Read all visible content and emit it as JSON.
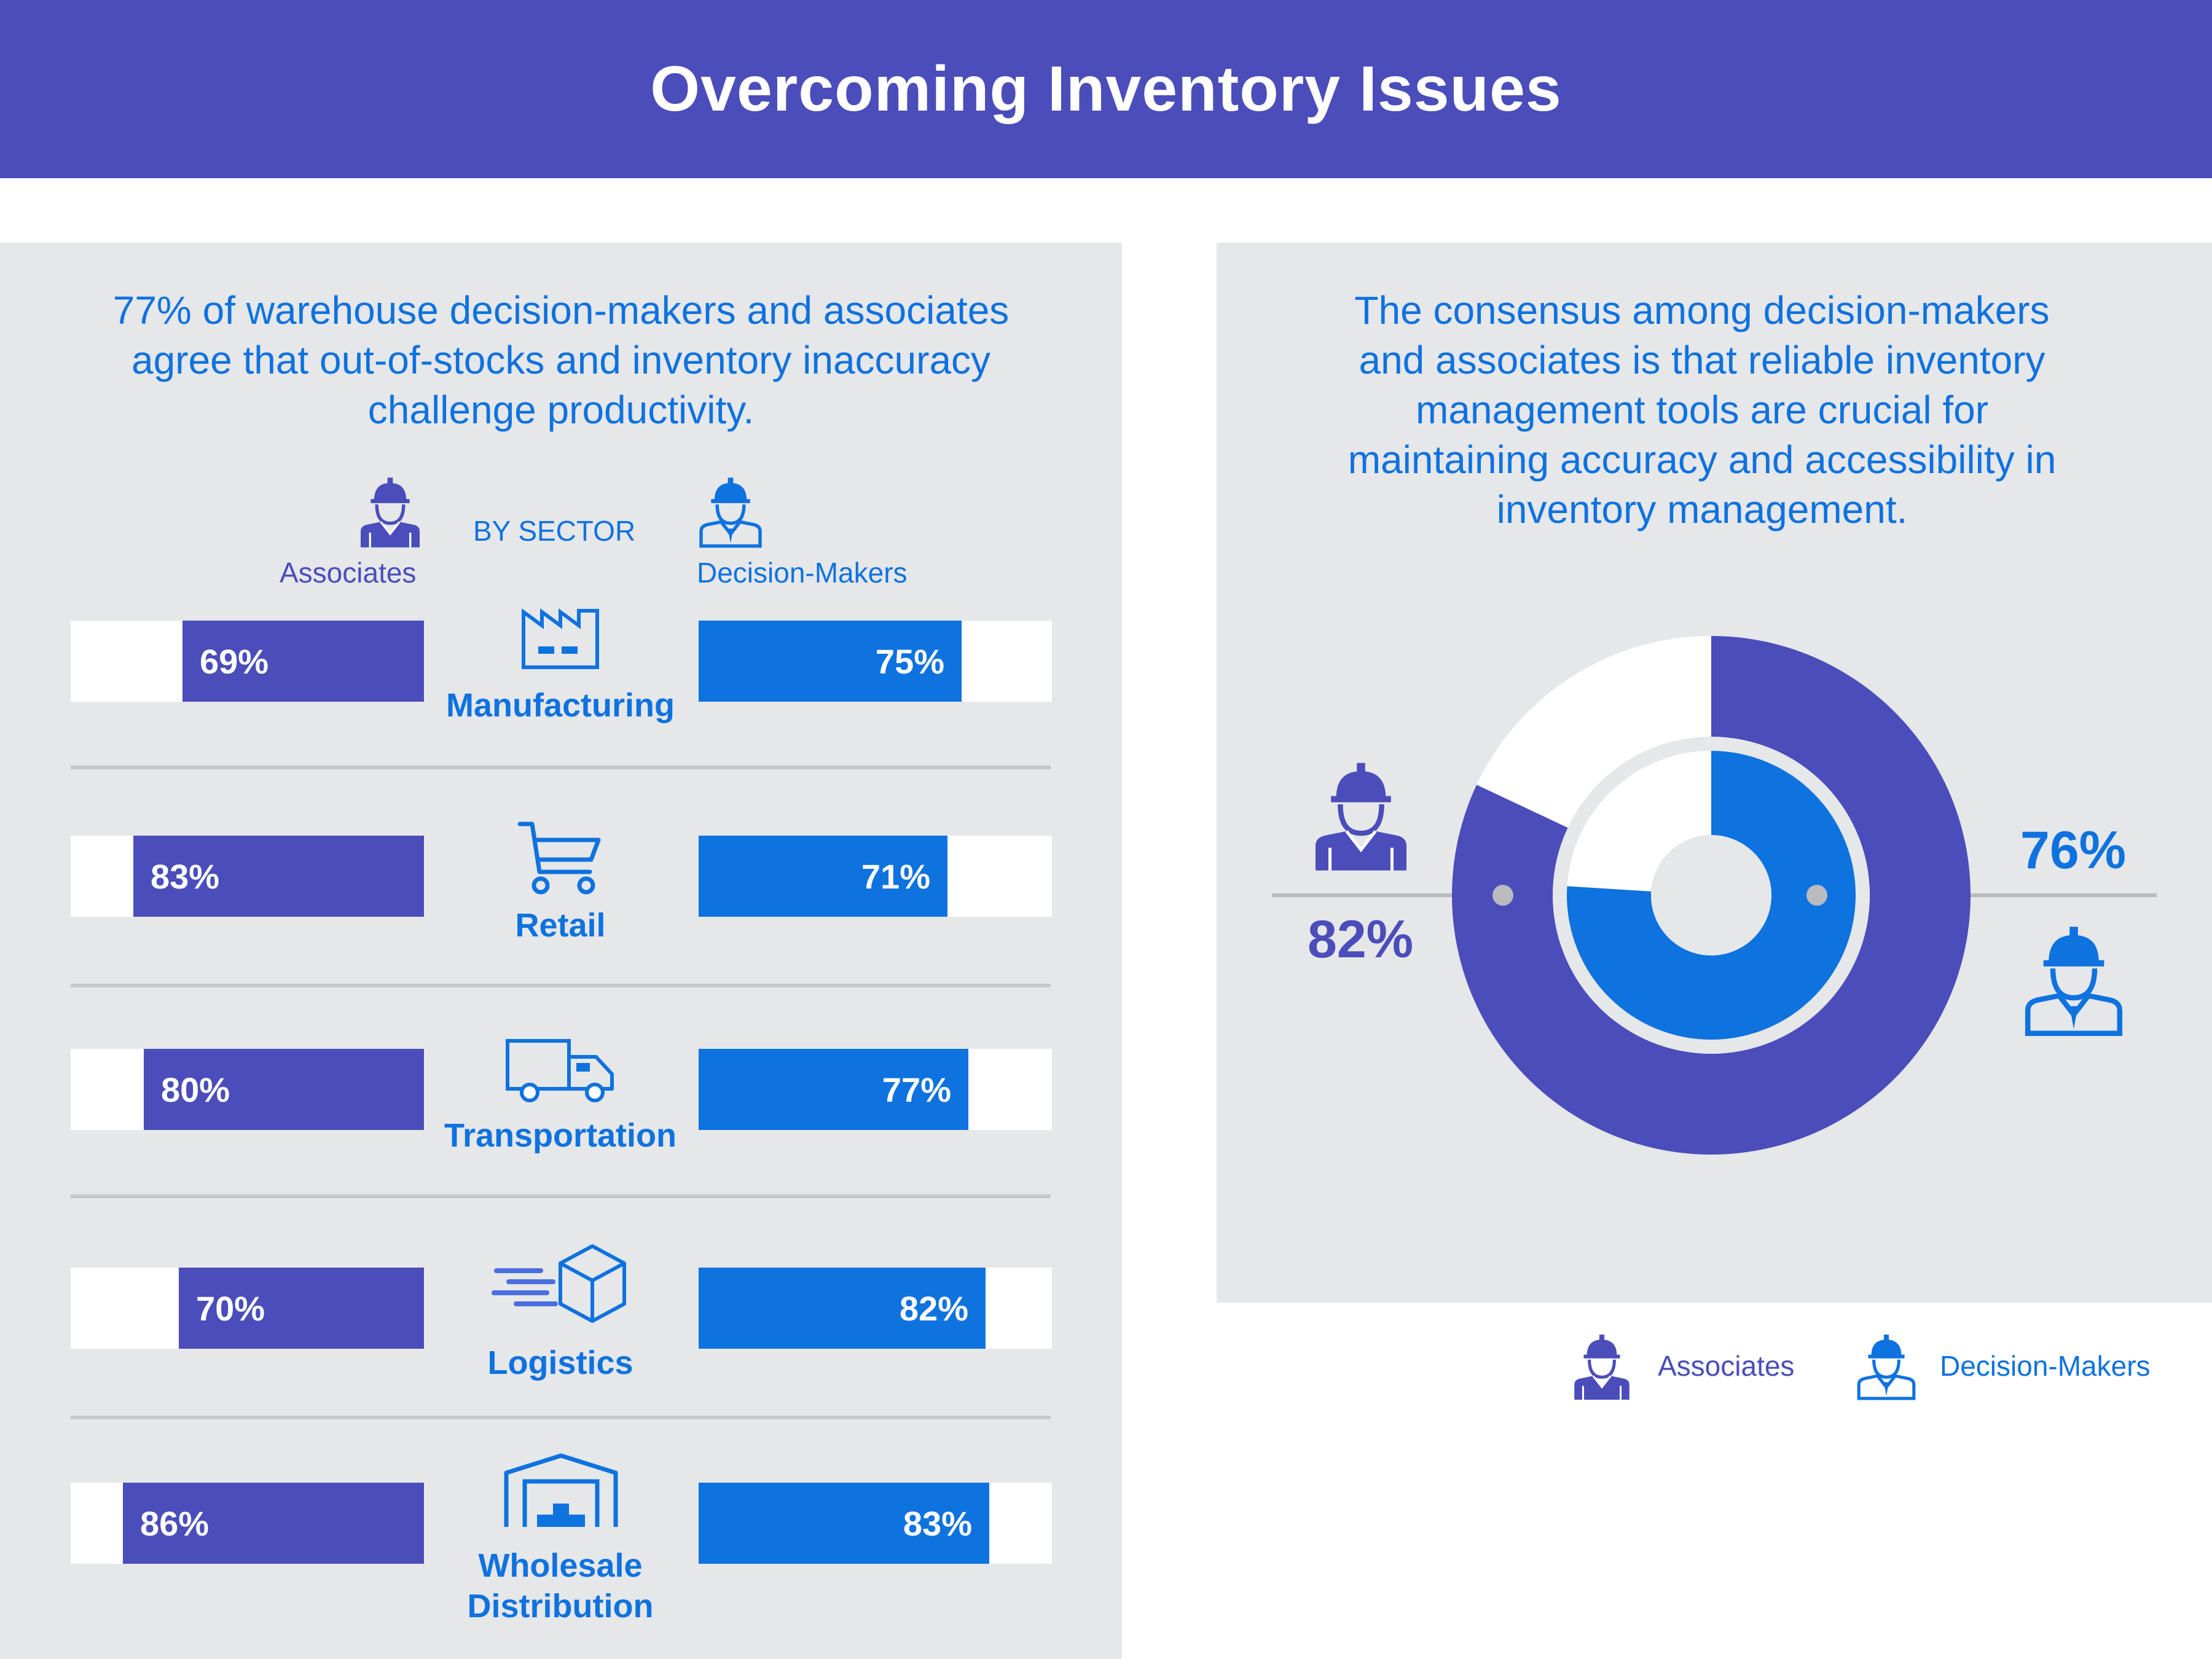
{
  "title": "Overcoming Inventory Issues",
  "left": {
    "intro": [
      "77% of warehouse decision-makers and associates",
      "agree that out-of-stocks and inventory inaccuracy",
      "challenge productivity."
    ],
    "by_sector": "BY SECTOR",
    "associates_label": "Associates",
    "decision_makers_label": "Decision-Makers"
  },
  "right": {
    "intro": [
      "The consensus among decision-makers",
      "and associates is that reliable inventory",
      "management tools are crucial for",
      "maintaining accuracy and accessibility in",
      "inventory management."
    ],
    "associates_pct": "82%",
    "decision_makers_pct": "76%",
    "legend": {
      "associates": "Associates",
      "decision_makers": "Decision-Makers"
    }
  },
  "colors": {
    "header": "#4a4dba",
    "associates": "#4a4dba",
    "decision_makers": "#0e72df",
    "panel": "#e6e7e9",
    "divider": "#c5c7cb"
  },
  "icons": [
    "factory-icon",
    "cart-icon",
    "truck-icon",
    "box-delivery-icon",
    "warehouse-icon",
    "associate-worker-icon",
    "decision-maker-icon"
  ],
  "chart_data": [
    {
      "type": "bar",
      "title": "BY SECTOR",
      "categories": [
        "Manufacturing",
        "Retail",
        "Transportation",
        "Logistics",
        "Wholesale Distribution"
      ],
      "category_lines": [
        [
          "Manufacturing"
        ],
        [
          "Retail"
        ],
        [
          "Transportation"
        ],
        [
          "Logistics"
        ],
        [
          "Wholesale",
          "Distribution"
        ]
      ],
      "series": [
        {
          "name": "Associates",
          "values": [
            69,
            83,
            80,
            70,
            86
          ],
          "labels": [
            "69%",
            "83%",
            "80%",
            "70%",
            "86%"
          ]
        },
        {
          "name": "Decision-Makers",
          "values": [
            75,
            71,
            77,
            82,
            83
          ],
          "labels": [
            "75%",
            "71%",
            "77%",
            "82%",
            "83%"
          ]
        }
      ],
      "ylim": [
        0,
        100
      ]
    },
    {
      "type": "pie",
      "title": "Reliable inventory management tools are crucial",
      "series": [
        {
          "name": "Associates",
          "value": 82,
          "label": "82%"
        },
        {
          "name": "Decision-Makers",
          "value": 76,
          "label": "76%"
        }
      ],
      "ylim": [
        0,
        100
      ]
    }
  ]
}
